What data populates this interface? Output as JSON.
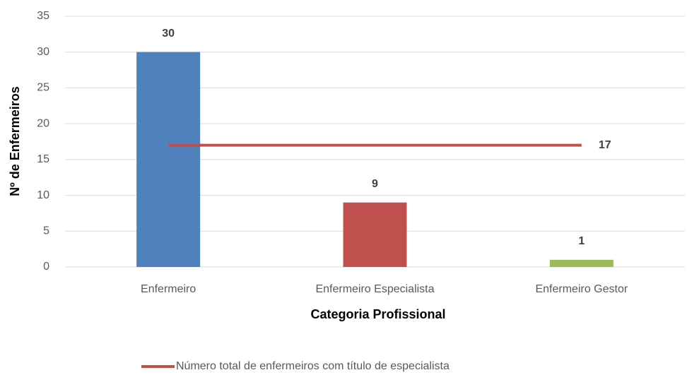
{
  "chart_data": {
    "type": "bar",
    "categories": [
      "Enfermeiro",
      "Enfermeiro Especialista",
      "Enfermeiro Gestor"
    ],
    "series": [
      {
        "type": "bar",
        "colors": [
          "#4f81bd",
          "#c0504d",
          "#9bbb59"
        ],
        "values": [
          30,
          9,
          1
        ]
      },
      {
        "type": "line",
        "name": "Número total de enfermeiros com título de especialista",
        "color": "#c0504d",
        "values": [
          17,
          17,
          17
        ]
      }
    ],
    "xlabel": "Categoria Profissional",
    "ylabel": "Nº de Enfermeiros",
    "ylim": [
      0,
      35
    ],
    "yticks": [
      0,
      5,
      10,
      15,
      20,
      25,
      30,
      35
    ],
    "grid": true,
    "legend": "bottom"
  }
}
